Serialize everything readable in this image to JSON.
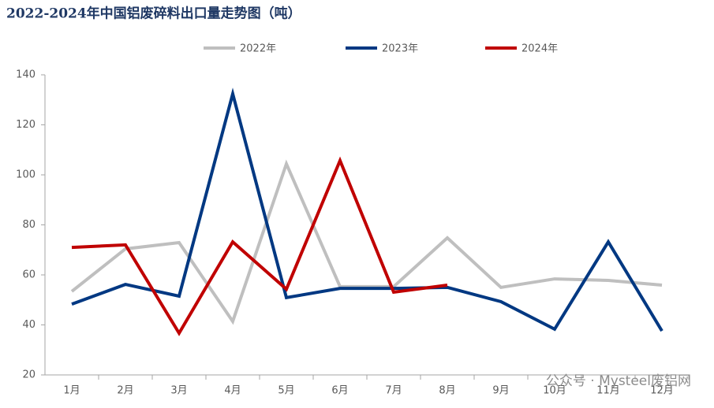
{
  "chart_data": {
    "type": "line",
    "title": "2022-2024年中国铝废碎料出口量走势图（吨）",
    "categories": [
      "1月",
      "2月",
      "3月",
      "4月",
      "5月",
      "6月",
      "7月",
      "8月",
      "9月",
      "10月",
      "11月",
      "12月"
    ],
    "series": [
      {
        "name": "2022年",
        "color": "#bfbfbf",
        "values": [
          53.4,
          70.4,
          72.9,
          41.4,
          104.4,
          55.3,
          55.3,
          74.8,
          55.0,
          58.4,
          57.8,
          55.9
        ]
      },
      {
        "name": "2023年",
        "color": "#003882",
        "values": [
          48.3,
          56.2,
          51.5,
          132.4,
          50.9,
          54.6,
          54.6,
          55.0,
          49.3,
          38.3,
          73.2,
          37.6
        ]
      },
      {
        "name": "2024年",
        "color": "#c00000",
        "values": [
          71.0,
          72.0,
          36.7,
          73.2,
          54.3,
          105.7,
          53.1,
          55.9,
          null,
          null,
          null,
          null
        ]
      }
    ],
    "ylim": [
      20,
      140
    ],
    "yticks": [
      20,
      40,
      60,
      80,
      100,
      120,
      140
    ],
    "grid": false,
    "legend": "top",
    "watermark": "公众号 · Mysteel废铝网"
  }
}
